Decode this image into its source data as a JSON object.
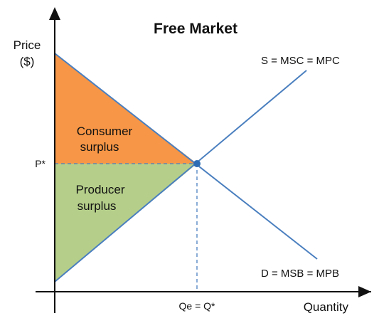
{
  "title": "Free Market",
  "axes": {
    "y_label_line1": "Price",
    "y_label_line2": "($)",
    "x_label": "Quantity"
  },
  "curves": {
    "supply_label": "S = MSC = MPC",
    "demand_label": "D = MSB = MPB"
  },
  "ticks": {
    "price_eq": "P*",
    "quantity_eq": "Qe = Q*"
  },
  "regions": {
    "consumer_line1": "Consumer",
    "consumer_line2": "surplus",
    "producer_line1": "Producer",
    "producer_line2": "surplus"
  },
  "colors": {
    "consumer_surplus": "#f79646",
    "producer_surplus": "#b5cf8a",
    "curve": "#4a7fbf",
    "equilibrium_point": "#2e6db4",
    "axis": "#111111"
  }
}
